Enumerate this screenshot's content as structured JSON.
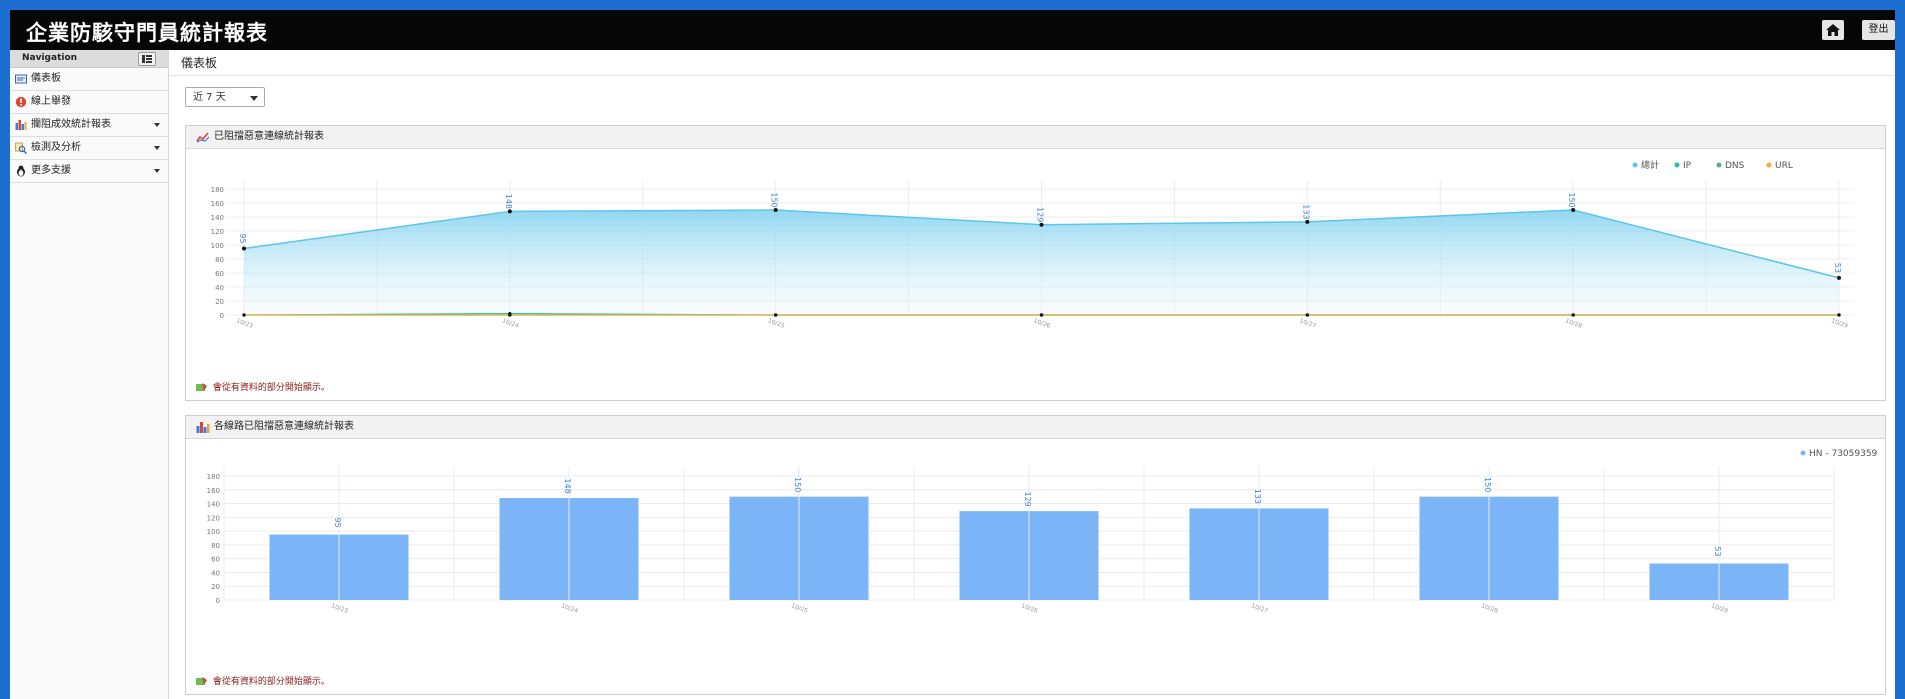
{
  "app": {
    "title": "企業防駭守門員統計報表",
    "logout_label": "登出"
  },
  "sidebar": {
    "header": "Navigation",
    "items": [
      {
        "label": "儀表板",
        "icon": "dashboard-icon"
      },
      {
        "label": "線上舉發",
        "icon": "alert-icon"
      },
      {
        "label": "攔阻成效統計報表",
        "icon": "bar-chart-icon"
      },
      {
        "label": "檢測及分析",
        "icon": "magnifier-icon"
      },
      {
        "label": "更多支援",
        "icon": "penguin-icon"
      }
    ]
  },
  "page": {
    "title": "儀表板",
    "range_value": "近 7 天"
  },
  "panels": {
    "line": {
      "title": "已阻擋惡意連線統計報表",
      "note": "會從有資料的部分開始顯示。"
    },
    "bar": {
      "title": "各線路已阻擋惡意連線統計報表",
      "note": "會從有資料的部分開始顯示。"
    }
  },
  "colors": {
    "total": "#5bc6e6",
    "ip": "#22c2b0",
    "dns": "#55b38a",
    "url": "#f2b13c",
    "bar": "#7cb5f7",
    "label": "#4a86d6"
  },
  "chart_data": [
    {
      "type": "area",
      "categories": [
        "10/23",
        "10/24",
        "10/25",
        "10/26",
        "10/27",
        "10/28",
        "10/29"
      ],
      "ylim": [
        0,
        180
      ],
      "yticks": [
        0,
        20,
        40,
        60,
        80,
        100,
        120,
        140,
        160,
        180
      ],
      "legend": [
        "總計",
        "IP",
        "DNS",
        "URL"
      ],
      "legend_position": "top-right",
      "series": [
        {
          "name": "總計",
          "values": [
            95,
            148,
            150,
            129,
            133,
            150,
            53
          ]
        },
        {
          "name": "IP",
          "values": [
            0,
            2,
            0,
            0,
            0,
            0,
            0
          ]
        },
        {
          "name": "DNS",
          "values": [
            0,
            0,
            0,
            0,
            0,
            0,
            0
          ]
        },
        {
          "name": "URL",
          "values": [
            0,
            0,
            0,
            0,
            0,
            0,
            0
          ]
        }
      ]
    },
    {
      "type": "bar",
      "categories": [
        "10/23",
        "10/24",
        "10/25",
        "10/26",
        "10/27",
        "10/28",
        "10/29"
      ],
      "ylim": [
        0,
        180
      ],
      "yticks": [
        0,
        20,
        40,
        60,
        80,
        100,
        120,
        140,
        160,
        180
      ],
      "legend": [
        "HN - 73059359"
      ],
      "legend_position": "top-right",
      "series": [
        {
          "name": "HN - 73059359",
          "values": [
            95,
            148,
            150,
            129,
            133,
            150,
            53
          ]
        }
      ]
    }
  ]
}
